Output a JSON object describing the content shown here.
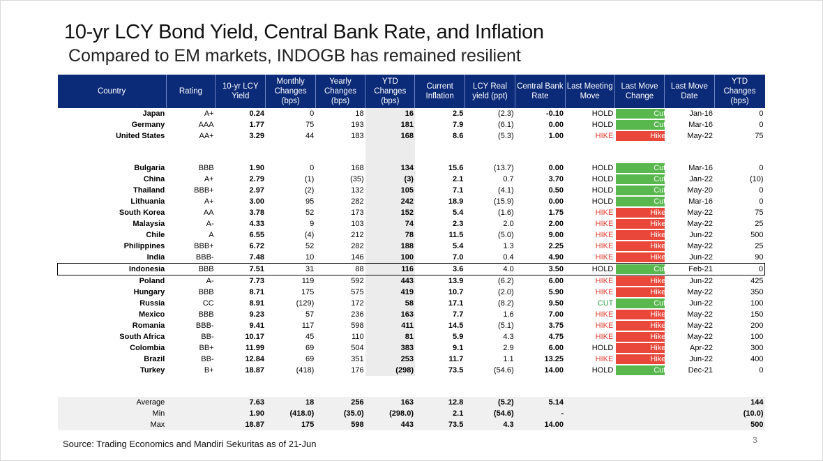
{
  "title": "10-yr LCY Bond Yield, Central Bank Rate, and Inflation",
  "subtitle": "Compared to EM markets, INDOGB has remained resilient",
  "headers": [
    "Country",
    "Rating",
    "10-yr LCY Yield",
    "Monthly Changes (bps)",
    "Yearly Changes (bps)",
    "YTD Changes (bps)",
    "Current Inflation",
    "LCY Real yield (ppt)",
    "Central Bank Rate",
    "Last Meeting Move",
    "Last Move Change",
    "Last Move Date",
    "YTD Changes (bps)"
  ],
  "dm_rows": [
    {
      "country": "Japan",
      "rating": "A+",
      "yield": "0.24",
      "monthly": "0",
      "yearly": "18",
      "ytd": "16",
      "inflation": "2.5",
      "real": "(2.3)",
      "cbr": "-0.10",
      "meeting": "HOLD",
      "change": "Cut",
      "date": "Jan-16",
      "ytd_bps": "0"
    },
    {
      "country": "Germany",
      "rating": "AAA",
      "yield": "1.77",
      "monthly": "75",
      "yearly": "193",
      "ytd": "181",
      "inflation": "7.9",
      "real": "(6.1)",
      "cbr": "0.00",
      "meeting": "HOLD",
      "change": "Cut",
      "date": "Mar-16",
      "ytd_bps": "0"
    },
    {
      "country": "United States",
      "rating": "AA+",
      "yield": "3.29",
      "monthly": "44",
      "yearly": "183",
      "ytd": "168",
      "inflation": "8.6",
      "real": "(5.3)",
      "cbr": "1.00",
      "meeting": "HIKE",
      "change": "Hike",
      "date": "May-22",
      "ytd_bps": "75"
    }
  ],
  "em_rows": [
    {
      "country": "Bulgaria",
      "rating": "BBB",
      "yield": "1.90",
      "monthly": "0",
      "yearly": "168",
      "ytd": "134",
      "inflation": "15.6",
      "real": "(13.7)",
      "cbr": "0.00",
      "meeting": "HOLD",
      "change": "Cut",
      "date": "Mar-16",
      "ytd_bps": "0"
    },
    {
      "country": "China",
      "rating": "A+",
      "yield": "2.79",
      "monthly": "(1)",
      "yearly": "(35)",
      "ytd": "(3)",
      "inflation": "2.1",
      "real": "0.7",
      "cbr": "3.70",
      "meeting": "HOLD",
      "change": "Cut",
      "date": "Jan-22",
      "ytd_bps": "(10)"
    },
    {
      "country": "Thailand",
      "rating": "BBB+",
      "yield": "2.97",
      "monthly": "(2)",
      "yearly": "132",
      "ytd": "105",
      "inflation": "7.1",
      "real": "(4.1)",
      "cbr": "0.50",
      "meeting": "HOLD",
      "change": "Cut",
      "date": "May-20",
      "ytd_bps": "0"
    },
    {
      "country": "Lithuania",
      "rating": "A+",
      "yield": "3.00",
      "monthly": "95",
      "yearly": "282",
      "ytd": "242",
      "inflation": "18.9",
      "real": "(15.9)",
      "cbr": "0.00",
      "meeting": "HOLD",
      "change": "Cut",
      "date": "Mar-16",
      "ytd_bps": "0"
    },
    {
      "country": "South Korea",
      "rating": "AA",
      "yield": "3.78",
      "monthly": "52",
      "yearly": "173",
      "ytd": "152",
      "inflation": "5.4",
      "real": "(1.6)",
      "cbr": "1.75",
      "meeting": "HIKE",
      "change": "Hike",
      "date": "May-22",
      "ytd_bps": "75"
    },
    {
      "country": "Malaysia",
      "rating": "A-",
      "yield": "4.33",
      "monthly": "9",
      "yearly": "103",
      "ytd": "74",
      "inflation": "2.3",
      "real": "2.0",
      "cbr": "2.00",
      "meeting": "HIKE",
      "change": "Hike",
      "date": "May-22",
      "ytd_bps": "25"
    },
    {
      "country": "Chile",
      "rating": "A",
      "yield": "6.55",
      "monthly": "(4)",
      "yearly": "212",
      "ytd": "78",
      "inflation": "11.5",
      "real": "(5.0)",
      "cbr": "9.00",
      "meeting": "HIKE",
      "change": "Hike",
      "date": "Jun-22",
      "ytd_bps": "500"
    },
    {
      "country": "Philippines",
      "rating": "BBB+",
      "yield": "6.72",
      "monthly": "52",
      "yearly": "282",
      "ytd": "188",
      "inflation": "5.4",
      "real": "1.3",
      "cbr": "2.25",
      "meeting": "HIKE",
      "change": "Hike",
      "date": "May-22",
      "ytd_bps": "25"
    },
    {
      "country": "India",
      "rating": "BBB-",
      "yield": "7.48",
      "monthly": "10",
      "yearly": "146",
      "ytd": "100",
      "inflation": "7.0",
      "real": "0.4",
      "cbr": "4.90",
      "meeting": "HIKE",
      "change": "Hike",
      "date": "Jun-22",
      "ytd_bps": "90"
    },
    {
      "country": "Indonesia",
      "rating": "BBB",
      "yield": "7.51",
      "monthly": "31",
      "yearly": "88",
      "ytd": "116",
      "inflation": "3.6",
      "real": "4.0",
      "cbr": "3.50",
      "meeting": "HOLD",
      "change": "Cut",
      "date": "Feb-21",
      "ytd_bps": "0",
      "highlight": true
    },
    {
      "country": "Poland",
      "rating": "A-",
      "yield": "7.73",
      "monthly": "119",
      "yearly": "592",
      "ytd": "443",
      "inflation": "13.9",
      "real": "(6.2)",
      "cbr": "6.00",
      "meeting": "HIKE",
      "change": "Hike",
      "date": "Jun-22",
      "ytd_bps": "425"
    },
    {
      "country": "Hungary",
      "rating": "BBB",
      "yield": "8.71",
      "monthly": "175",
      "yearly": "575",
      "ytd": "419",
      "inflation": "10.7",
      "real": "(2.0)",
      "cbr": "5.90",
      "meeting": "HIKE",
      "change": "Hike",
      "date": "May-22",
      "ytd_bps": "350"
    },
    {
      "country": "Russia",
      "rating": "CC",
      "yield": "8.91",
      "monthly": "(129)",
      "yearly": "172",
      "ytd": "58",
      "inflation": "17.1",
      "real": "(8.2)",
      "cbr": "9.50",
      "meeting": "CUT",
      "change": "Cut",
      "date": "Jun-22",
      "ytd_bps": "100"
    },
    {
      "country": "Mexico",
      "rating": "BBB",
      "yield": "9.23",
      "monthly": "57",
      "yearly": "236",
      "ytd": "163",
      "inflation": "7.7",
      "real": "1.6",
      "cbr": "7.00",
      "meeting": "HIKE",
      "change": "Hike",
      "date": "May-22",
      "ytd_bps": "150"
    },
    {
      "country": "Romania",
      "rating": "BBB-",
      "yield": "9.41",
      "monthly": "117",
      "yearly": "598",
      "ytd": "411",
      "inflation": "14.5",
      "real": "(5.1)",
      "cbr": "3.75",
      "meeting": "HIKE",
      "change": "Hike",
      "date": "May-22",
      "ytd_bps": "200"
    },
    {
      "country": "South Africa",
      "rating": "BB-",
      "yield": "10.17",
      "monthly": "45",
      "yearly": "110",
      "ytd": "81",
      "inflation": "5.9",
      "real": "4.3",
      "cbr": "4.75",
      "meeting": "HIKE",
      "change": "Hike",
      "date": "May-22",
      "ytd_bps": "100"
    },
    {
      "country": "Colombia",
      "rating": "BB+",
      "yield": "11.99",
      "monthly": "69",
      "yearly": "504",
      "ytd": "383",
      "inflation": "9.1",
      "real": "2.9",
      "cbr": "6.00",
      "meeting": "HOLD",
      "change": "Hike",
      "date": "Apr-22",
      "ytd_bps": "300"
    },
    {
      "country": "Brazil",
      "rating": "BB-",
      "yield": "12.84",
      "monthly": "69",
      "yearly": "351",
      "ytd": "253",
      "inflation": "11.7",
      "real": "1.1",
      "cbr": "13.25",
      "meeting": "HIKE",
      "change": "Hike",
      "date": "Jun-22",
      "ytd_bps": "400"
    },
    {
      "country": "Turkey",
      "rating": "B+",
      "yield": "18.87",
      "monthly": "(418)",
      "yearly": "176",
      "ytd": "(298)",
      "inflation": "73.5",
      "real": "(54.6)",
      "cbr": "14.00",
      "meeting": "HOLD",
      "change": "Cut",
      "date": "Dec-21",
      "ytd_bps": "0"
    }
  ],
  "summary_rows": [
    {
      "label": "Average",
      "yield": "7.63",
      "monthly": "18",
      "yearly": "256",
      "ytd": "163",
      "inflation": "12.8",
      "real": "(5.2)",
      "cbr": "5.14",
      "ytd_bps": "144"
    },
    {
      "label": "Min",
      "yield": "1.90",
      "monthly": "(418.0)",
      "yearly": "(35.0)",
      "ytd": "(298.0)",
      "inflation": "2.1",
      "real": "(54.6)",
      "cbr": "-",
      "ytd_bps": "(10.0)"
    },
    {
      "label": "Max",
      "yield": "18.87",
      "monthly": "175",
      "yearly": "598",
      "ytd": "443",
      "inflation": "73.5",
      "real": "4.3",
      "cbr": "14.00",
      "ytd_bps": "500"
    }
  ],
  "colors": {
    "header_bg": "#0b2a78",
    "cut": "#58b84e",
    "hike": "#e8473a",
    "hike_text": "#e23a2e",
    "cut_text": "#2fa34a"
  },
  "source": "Source: Trading Economics and Mandiri Sekuritas as of 21-Jun",
  "page_number": "3"
}
